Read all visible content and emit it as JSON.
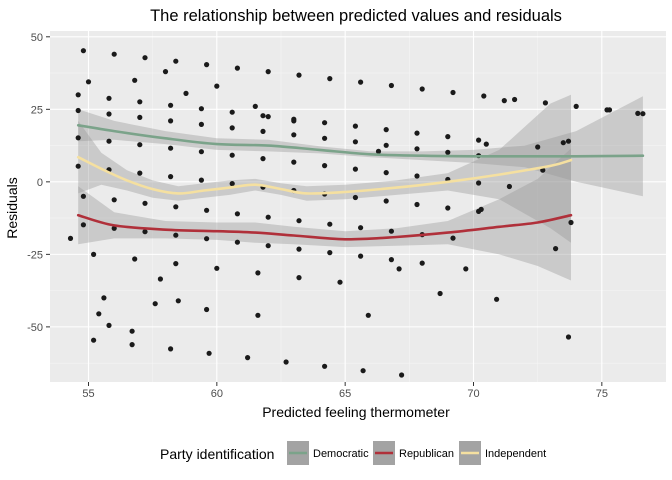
{
  "chart_data": {
    "type": "scatter",
    "title": "The relationship between predicted values and residuals",
    "xlabel": "Predicted feeling thermometer",
    "ylabel": "Residuals",
    "xlim": [
      53.5,
      77.5
    ],
    "ylim": [
      -69,
      52
    ],
    "xticks": [
      55,
      60,
      65,
      70,
      75
    ],
    "yticks": [
      -50,
      -25,
      0,
      25,
      50
    ],
    "grid": true,
    "legend": {
      "title": "Party identification",
      "position": "bottom",
      "entries": [
        {
          "name": "Democratic",
          "color": "#7ba38a"
        },
        {
          "name": "Republican",
          "color": "#b0303a"
        },
        {
          "name": "Independent",
          "color": "#f5e0a0"
        }
      ]
    },
    "point_color": "#1a1a1a",
    "bands": [
      {
        "name": "Democratic",
        "x_range": [
          54.8,
          76.6
        ],
        "dx": 1.2,
        "y0": 45.2,
        "slope": -1.0
      },
      {
        "name": "Democratic",
        "x_range": [
          54.6,
          70.8
        ],
        "dx": 1.2,
        "y0": 30.0,
        "slope": -1.0
      },
      {
        "name": "Democratic",
        "x_range": [
          54.6,
          71.2
        ],
        "dx": 1.2,
        "y0": 24.6,
        "slope": -1.0
      },
      {
        "name": "Democratic",
        "x_range": [
          54.6,
          71.4
        ],
        "dx": 1.2,
        "y0": 15.2,
        "slope": -1.0
      },
      {
        "name": "Independent",
        "x_range": [
          54.6,
          71.0
        ],
        "dx": 1.2,
        "y0": 5.4,
        "slope": -1.0
      },
      {
        "name": "Independent",
        "x_range": [
          54.8,
          70.0
        ],
        "dx": 1.2,
        "y0": -5.0,
        "slope": -1.0
      },
      {
        "name": "Republican",
        "x_range": [
          54.8,
          69.0
        ],
        "dx": 1.2,
        "y0": -14.8,
        "slope": -1.0
      },
      {
        "name": "Republican",
        "x_range": [
          55.2,
          66.0
        ],
        "dx": 1.6,
        "y0": -25.0,
        "slope": -1.0
      },
      {
        "name": "Republican",
        "x_range": [
          55.6,
          63.0
        ],
        "dx": 2.0,
        "y0": -40.0,
        "slope": -1.0
      },
      {
        "name": "Republican",
        "x_range": [
          55.2,
          67.2
        ],
        "dx": 1.5,
        "y0": -54.6,
        "slope": -1.0
      }
    ],
    "extra_points": [
      {
        "x": 55.0,
        "y": 34.5
      },
      {
        "x": 56.8,
        "y": 35.0
      },
      {
        "x": 58.8,
        "y": 30.5
      },
      {
        "x": 61.5,
        "y": 26.0
      },
      {
        "x": 71.2,
        "y": 28.0
      },
      {
        "x": 73.7,
        "y": 14.0
      },
      {
        "x": 73.5,
        "y": 13.5
      },
      {
        "x": 75.3,
        "y": 24.8
      },
      {
        "x": 76.6,
        "y": 23.5
      },
      {
        "x": 73.8,
        "y": -14.0
      },
      {
        "x": 73.2,
        "y": -23.0
      },
      {
        "x": 73.7,
        "y": -53.5
      },
      {
        "x": 70.9,
        "y": -40.5
      },
      {
        "x": 69.7,
        "y": -30.0
      },
      {
        "x": 68.7,
        "y": -38.5
      },
      {
        "x": 54.3,
        "y": -19.5
      },
      {
        "x": 55.8,
        "y": -49.5
      },
      {
        "x": 56.7,
        "y": -51.5
      },
      {
        "x": 58.5,
        "y": -41.0
      },
      {
        "x": 55.4,
        "y": -45.5
      },
      {
        "x": 57.8,
        "y": -33.5
      },
      {
        "x": 67.1,
        "y": -30.0
      },
      {
        "x": 65.9,
        "y": -46.0
      },
      {
        "x": 70.3,
        "y": -9.5
      },
      {
        "x": 72.7,
        "y": 4.0
      },
      {
        "x": 70.5,
        "y": 13.0
      },
      {
        "x": 72.5,
        "y": 12.0
      },
      {
        "x": 66.3,
        "y": 10.5
      },
      {
        "x": 62.0,
        "y": 22.5
      },
      {
        "x": 58.0,
        "y": 38.0
      },
      {
        "x": 60.0,
        "y": 33.0
      },
      {
        "x": 63.0,
        "y": 21.0
      }
    ],
    "series": [
      {
        "name": "Democratic",
        "color": "#7ba38a",
        "x": [
          54.6,
          56,
          58,
          60,
          62,
          64,
          66,
          68,
          70,
          72,
          74,
          76.6
        ],
        "y": [
          19.5,
          17.5,
          15.0,
          13.0,
          12.5,
          11.0,
          9.5,
          9.0,
          8.8,
          8.8,
          8.8,
          9.0
        ],
        "ci_lower": [
          14.0,
          14.5,
          13.0,
          11.0,
          10.5,
          9.8,
          8.5,
          7.5,
          6.5,
          5.0,
          0.0,
          -5.0
        ],
        "ci_upper": [
          25.0,
          21.0,
          17.5,
          15.0,
          14.5,
          12.3,
          10.5,
          10.5,
          11.0,
          12.5,
          17.5,
          29.5
        ]
      },
      {
        "name": "Republican",
        "color": "#b0303a",
        "x": [
          54.6,
          56,
          58,
          60,
          61.5,
          63,
          65,
          67,
          69,
          71,
          72.5,
          73.8
        ],
        "y": [
          -11.5,
          -15.0,
          -16.5,
          -17.0,
          -17.5,
          -18.5,
          -19.8,
          -19.0,
          -17.5,
          -15.5,
          -14.0,
          -11.5
        ],
        "ci_lower": [
          -21.5,
          -19.5,
          -19.5,
          -20.0,
          -21.0,
          -21.5,
          -22.5,
          -22.0,
          -21.5,
          -25.0,
          -29.0,
          -34.0
        ],
        "ci_upper": [
          -1.5,
          -10.5,
          -13.5,
          -14.0,
          -14.0,
          -15.5,
          -17.0,
          -16.0,
          -13.5,
          -6.0,
          1.0,
          11.5
        ]
      },
      {
        "name": "Independent",
        "color": "#f5e0a0",
        "x": [
          54.6,
          55.5,
          56.5,
          57.5,
          58.5,
          59.5,
          60.5,
          61.5,
          62.5,
          63.5,
          65,
          67,
          69,
          71,
          73,
          73.8
        ],
        "y": [
          8.5,
          4.5,
          0.5,
          -2.5,
          -4.0,
          -3.0,
          -2.0,
          -1.0,
          -2.5,
          -4.0,
          -3.5,
          -2.0,
          0.0,
          2.5,
          5.5,
          7.5
        ],
        "ci_lower": [
          -4.0,
          -1.0,
          -3.0,
          -5.5,
          -6.5,
          -5.5,
          -4.5,
          -3.0,
          -4.5,
          -6.5,
          -6.0,
          -4.5,
          -3.0,
          -6.0,
          -16.0,
          -21.0
        ],
        "ci_upper": [
          21.0,
          10.0,
          4.0,
          0.5,
          -1.5,
          -0.5,
          0.5,
          1.0,
          -0.5,
          -1.5,
          -1.0,
          0.5,
          3.0,
          11.0,
          27.0,
          30.0
        ]
      }
    ]
  }
}
